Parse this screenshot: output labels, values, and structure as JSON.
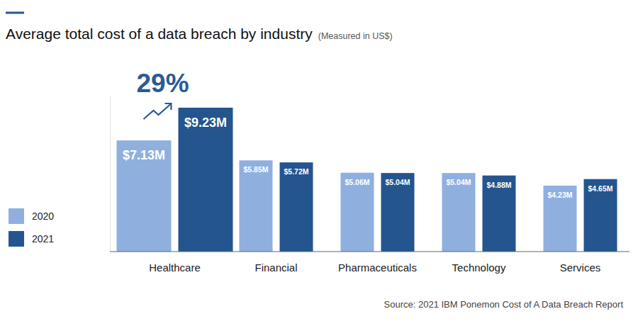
{
  "chart_data": {
    "type": "bar",
    "title": "Average total cost of a data breach by industry",
    "subtitle": "(Measured in US$)",
    "annotation": "29%",
    "source": "Source: 2021 IBM Ponemon Cost of A Data Breach Report",
    "categories": [
      "Healthcare",
      "Financial",
      "Pharmaceuticals",
      "Technology",
      "Services"
    ],
    "series": [
      {
        "name": "2020",
        "color": "#8fb0df",
        "values": [
          7.13,
          5.85,
          5.06,
          5.04,
          4.23
        ],
        "value_labels": [
          "$7.13M",
          "$5.85M",
          "$5.06M",
          "$5.04M",
          "$4.23M"
        ]
      },
      {
        "name": "2021",
        "color": "#24558f",
        "values": [
          9.23,
          5.72,
          5.04,
          4.88,
          4.65
        ],
        "value_labels": [
          "$9.23M",
          "$5.72M",
          "$5.04M",
          "$4.88M",
          "$4.65M"
        ]
      }
    ],
    "ylim": [
      0,
      10
    ],
    "yticks": [
      0
    ],
    "grid": false,
    "legend": "left",
    "data_labels": true,
    "tick_labels": false
  }
}
